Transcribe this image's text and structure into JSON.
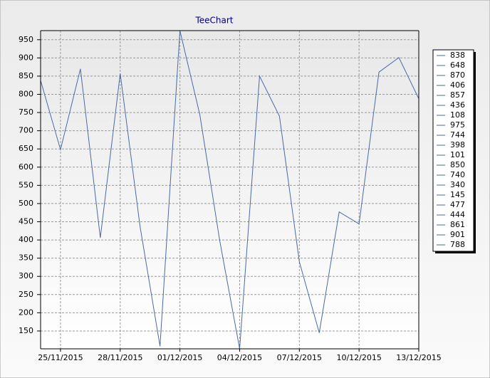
{
  "chart_data": {
    "type": "line",
    "title": "TeeChart",
    "x": [
      "24/11/2015",
      "25/11/2015",
      "26/11/2015",
      "27/11/2015",
      "28/11/2015",
      "29/11/2015",
      "30/11/2015",
      "01/12/2015",
      "02/12/2015",
      "03/12/2015",
      "04/12/2015",
      "05/12/2015",
      "06/12/2015",
      "07/12/2015",
      "08/12/2015",
      "09/12/2015",
      "10/12/2015",
      "11/12/2015",
      "12/12/2015",
      "13/12/2015"
    ],
    "series": [
      {
        "color": "#4a6aa5",
        "values": [
          838,
          648,
          870,
          406,
          857,
          436,
          108,
          975,
          744,
          398,
          101,
          850,
          740,
          340,
          145,
          477,
          444,
          861,
          901,
          788
        ]
      }
    ],
    "xticks": [
      "25/11/2015",
      "28/11/2015",
      "01/12/2015",
      "04/12/2015",
      "07/12/2015",
      "10/12/2015",
      "13/12/2015"
    ],
    "ylim": [
      101,
      975
    ],
    "yticks": [
      150,
      200,
      250,
      300,
      350,
      400,
      450,
      500,
      550,
      600,
      650,
      700,
      750,
      800,
      850,
      900,
      950
    ],
    "grid": true,
    "legend": "right"
  }
}
